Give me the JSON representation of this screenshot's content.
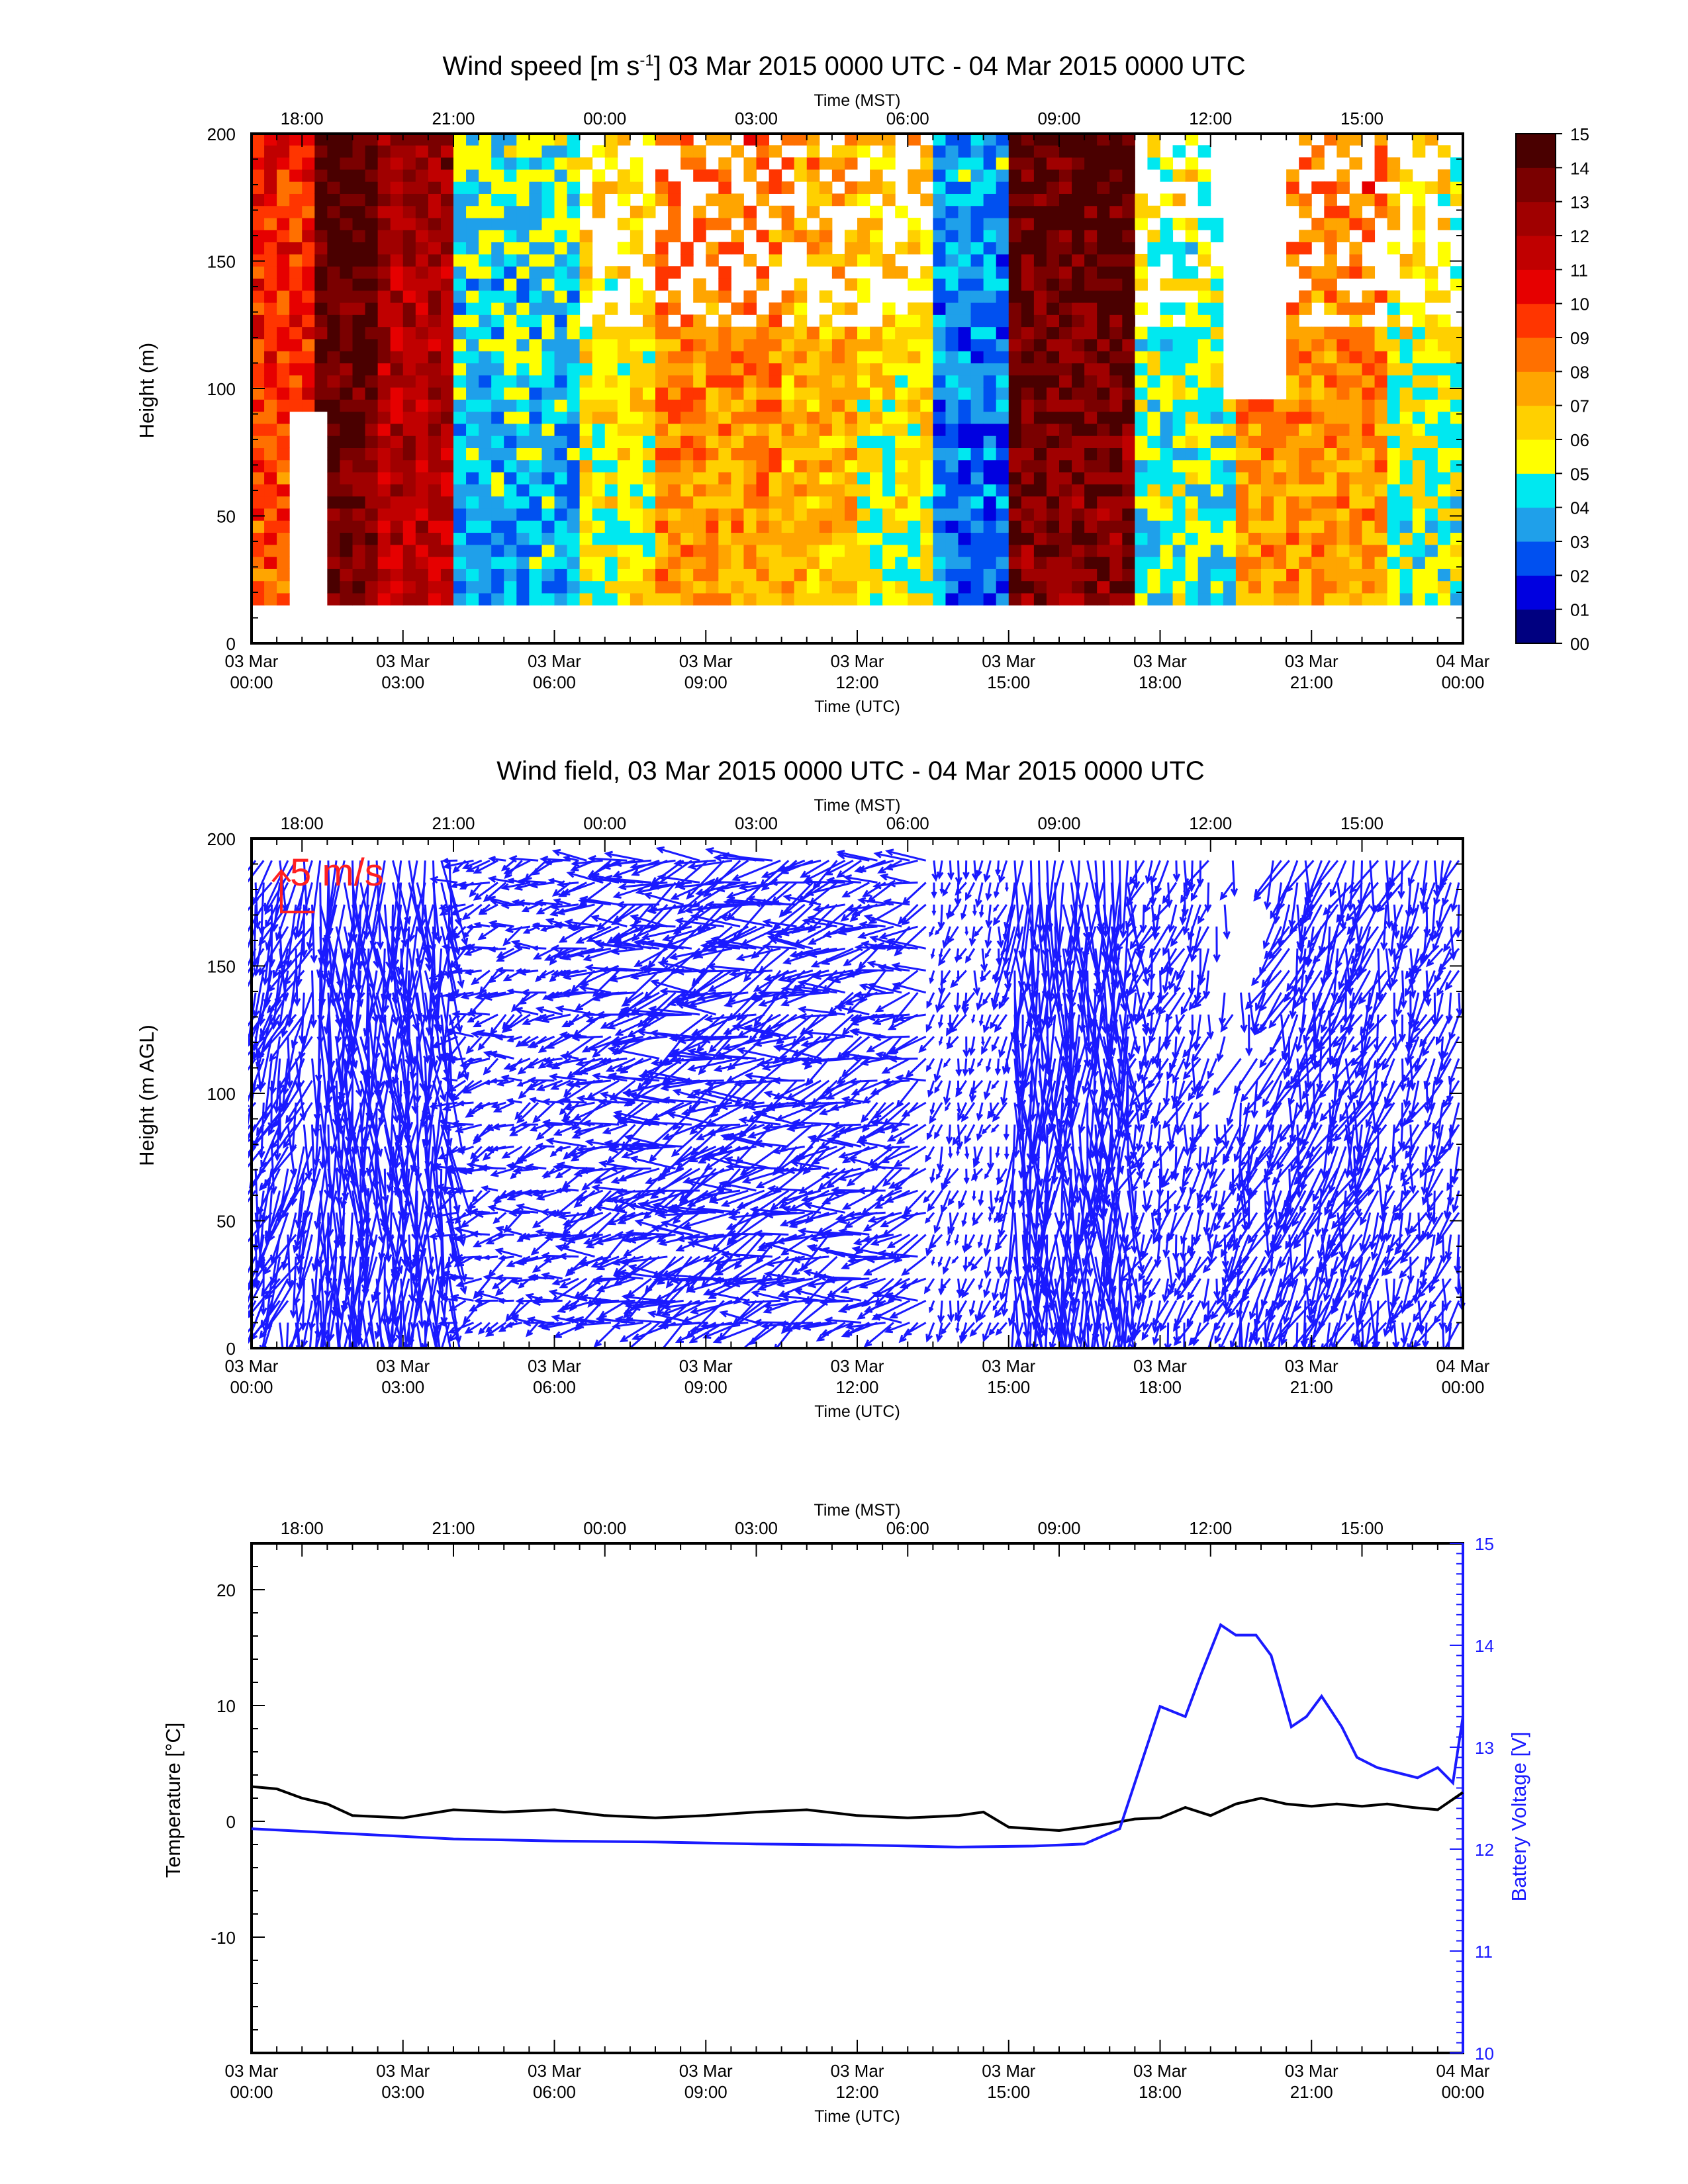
{
  "panels": {
    "speed": {
      "title_main": "Wind speed [m s",
      "title_sup": "-1",
      "title_rest": "] 03 Mar 2015 0000 UTC - 04 Mar 2015 0000 UTC",
      "ylabel": "Height (m)"
    },
    "field": {
      "title": "Wind field, 03 Mar 2015 0000 UTC - 04 Mar 2015 0000 UTC",
      "ylabel": "Height (m AGL)",
      "ref_label": "5 m/s"
    },
    "ts": {
      "ylabel_left": "Temperature [°C]",
      "ylabel_right": "Battery Voltage [V]"
    }
  },
  "axes": {
    "top_label": "Time (MST)",
    "bottom_label": "Time (UTC)",
    "mst_ticks": [
      "18:00",
      "21:00",
      "00:00",
      "03:00",
      "06:00",
      "09:00",
      "12:00",
      "15:00"
    ],
    "utc_ticks": [
      [
        "03 Mar",
        "00:00"
      ],
      [
        "03 Mar",
        "03:00"
      ],
      [
        "03 Mar",
        "06:00"
      ],
      [
        "03 Mar",
        "09:00"
      ],
      [
        "03 Mar",
        "12:00"
      ],
      [
        "03 Mar",
        "15:00"
      ],
      [
        "03 Mar",
        "18:00"
      ],
      [
        "03 Mar",
        "21:00"
      ],
      [
        "04 Mar",
        "00:00"
      ]
    ],
    "height_ticks": [
      "0",
      "50",
      "100",
      "150",
      "200"
    ],
    "temp_ticks": [
      "-10",
      "0",
      "10",
      "20"
    ],
    "volt_ticks": [
      "10",
      "11",
      "12",
      "13",
      "14",
      "15"
    ]
  },
  "colorbar": {
    "labels": [
      "00",
      "01",
      "02",
      "03",
      "04",
      "05",
      "06",
      "07",
      "08",
      "09",
      "10",
      "11",
      "12",
      "13",
      "14",
      "15"
    ],
    "colors": [
      "#000080",
      "#0000e0",
      "#0050f0",
      "#1fa0ea",
      "#00e8f0",
      "#ffff00",
      "#ffd000",
      "#ffa500",
      "#ff7000",
      "#ff3500",
      "#e60000",
      "#c00000",
      "#a00000",
      "#7a0000",
      "#4a0000"
    ]
  },
  "chart_data": [
    {
      "type": "heatmap",
      "title": "Wind speed [m s-1] 03 Mar 2015 0000 UTC - 04 Mar 2015 0000 UTC",
      "xlabel": "Time (UTC)",
      "ylabel": "Height (m)",
      "xlim_hours": [
        0,
        24
      ],
      "ylim": [
        0,
        200
      ],
      "z_range": [
        0,
        15
      ],
      "z_unit": "m s-1",
      "approx_column_means": [
        {
          "start_h": 0.0,
          "end_h": 1.3,
          "speed": 9
        },
        {
          "start_h": 1.3,
          "end_h": 2.5,
          "speed": 13.5
        },
        {
          "start_h": 2.5,
          "end_h": 4.0,
          "speed": 11.5
        },
        {
          "start_h": 4.0,
          "end_h": 6.5,
          "speed": 3.5
        },
        {
          "start_h": 6.5,
          "end_h": 8.0,
          "speed": 5.5
        },
        {
          "start_h": 8.0,
          "end_h": 10.5,
          "speed": 7.5
        },
        {
          "start_h": 10.5,
          "end_h": 12.0,
          "speed": 6.5
        },
        {
          "start_h": 12.0,
          "end_h": 13.5,
          "speed": 5.5
        },
        {
          "start_h": 13.5,
          "end_h": 15.0,
          "speed": 2.5
        },
        {
          "start_h": 15.0,
          "end_h": 17.5,
          "speed": 13.0
        },
        {
          "start_h": 17.5,
          "end_h": 19.5,
          "speed": 4.5
        },
        {
          "start_h": 19.5,
          "end_h": 22.5,
          "speed": 7.5
        },
        {
          "start_h": 22.5,
          "end_h": 24.0,
          "speed": 5.0
        }
      ]
    },
    {
      "type": "quiver",
      "title": "Wind field, 03 Mar 2015 0000 UTC - 04 Mar 2015 0000 UTC",
      "xlabel": "Time (UTC)",
      "ylabel": "Height (m AGL)",
      "xlim_hours": [
        0,
        24
      ],
      "ylim": [
        0,
        200
      ],
      "reference_vector": "5 m/s",
      "color": "#1a1aff"
    },
    {
      "type": "line",
      "xlabel": "Time (UTC)",
      "xlim_hours": [
        0,
        24
      ],
      "series": [
        {
          "name": "Temperature [°C]",
          "axis": "left",
          "ylim": [
            -20,
            24
          ],
          "color": "#000000",
          "x": [
            0,
            0.5,
            1.0,
            1.5,
            2.0,
            3.0,
            4.0,
            5.0,
            6.0,
            7.0,
            8.0,
            9.0,
            10.0,
            11.0,
            12.0,
            13.0,
            14.0,
            14.5,
            15.0,
            16.0,
            17.0,
            17.5,
            18.0,
            18.5,
            19.0,
            19.5,
            20.0,
            20.5,
            21.0,
            21.5,
            22.0,
            22.5,
            23.0,
            23.5,
            24.0
          ],
          "y": [
            3.0,
            2.8,
            2.0,
            1.5,
            0.5,
            0.3,
            1.0,
            0.8,
            1.0,
            0.5,
            0.3,
            0.5,
            0.8,
            1.0,
            0.5,
            0.3,
            0.5,
            0.8,
            -0.5,
            -0.8,
            -0.2,
            0.2,
            0.3,
            1.2,
            0.5,
            1.5,
            2.0,
            1.5,
            1.3,
            1.5,
            1.3,
            1.5,
            1.2,
            1.0,
            2.5
          ]
        },
        {
          "name": "Battery Voltage [V]",
          "axis": "right",
          "ylim": [
            10,
            15
          ],
          "color": "#1a1aff",
          "x": [
            0,
            2,
            4,
            6,
            8,
            10,
            12,
            14,
            15.5,
            16.5,
            17.2,
            17.6,
            18.0,
            18.5,
            18.8,
            19.2,
            19.5,
            19.9,
            20.2,
            20.6,
            20.9,
            21.2,
            21.6,
            21.9,
            22.3,
            22.7,
            23.1,
            23.5,
            23.8,
            24.0
          ],
          "y": [
            12.2,
            12.15,
            12.1,
            12.08,
            12.07,
            12.05,
            12.04,
            12.02,
            12.03,
            12.05,
            12.2,
            12.8,
            13.4,
            13.3,
            13.7,
            14.2,
            14.1,
            14.1,
            13.9,
            13.2,
            13.3,
            13.5,
            13.2,
            12.9,
            12.8,
            12.75,
            12.7,
            12.8,
            12.65,
            13.3
          ]
        }
      ]
    }
  ]
}
